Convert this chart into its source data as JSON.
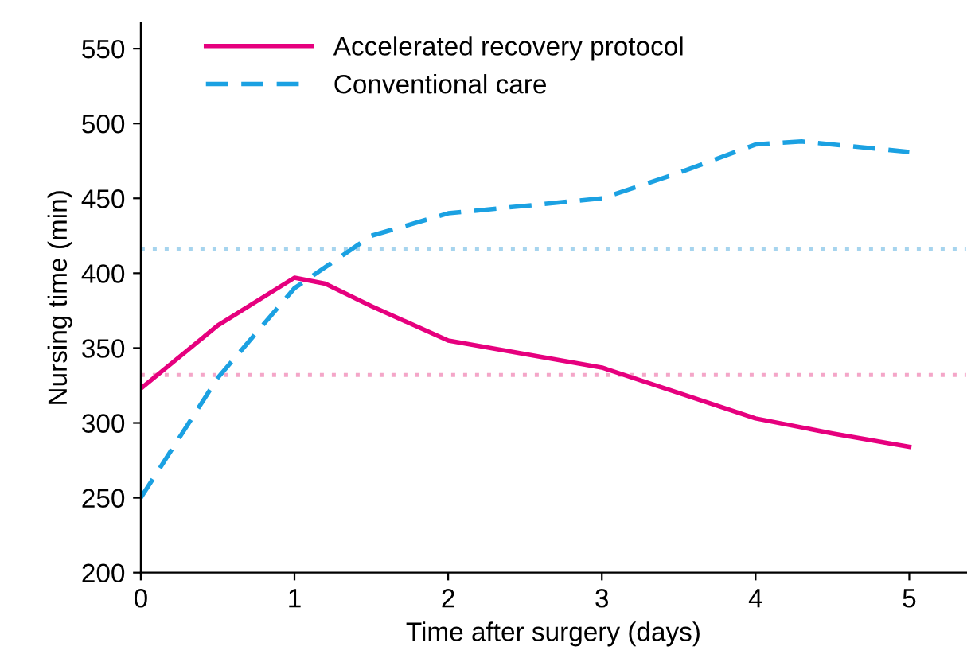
{
  "chart_data": {
    "type": "line",
    "xlabel": "Time after surgery (days)",
    "ylabel": "Nursing time (min)",
    "xlim": [
      0,
      5.37
    ],
    "ylim": [
      200,
      567
    ],
    "xticks": [
      0,
      1,
      2,
      3,
      4,
      5
    ],
    "yticks": [
      200,
      250,
      300,
      350,
      400,
      450,
      500,
      550
    ],
    "grid": false,
    "legend": "top left",
    "marker": "none",
    "series": [
      {
        "name": "Accelerated recovery protocol",
        "color": "#e6007e",
        "line_style": "solid",
        "x": [
          0,
          0.5,
          1,
          1.2,
          1.5,
          2,
          2.5,
          3,
          3.5,
          4,
          4.5,
          5
        ],
        "values": [
          323,
          365,
          397,
          393,
          378,
          355,
          346,
          337,
          320,
          303,
          293,
          284
        ]
      },
      {
        "name": "Conventional care",
        "color": "#1ba1e2",
        "line_style": "dashed",
        "x": [
          0,
          0.5,
          1,
          1.5,
          2,
          2.5,
          3,
          3.5,
          4,
          4.3,
          5
        ],
        "values": [
          250,
          330,
          390,
          425,
          440,
          445,
          450,
          467,
          486,
          488,
          481
        ]
      }
    ],
    "ref_lines": [
      {
        "axis": "y",
        "value": 416,
        "color": "#a6d4ee",
        "line_style": "dotted"
      },
      {
        "axis": "y",
        "value": 332,
        "color": "#f4a6c8",
        "line_style": "dotted"
      }
    ]
  }
}
